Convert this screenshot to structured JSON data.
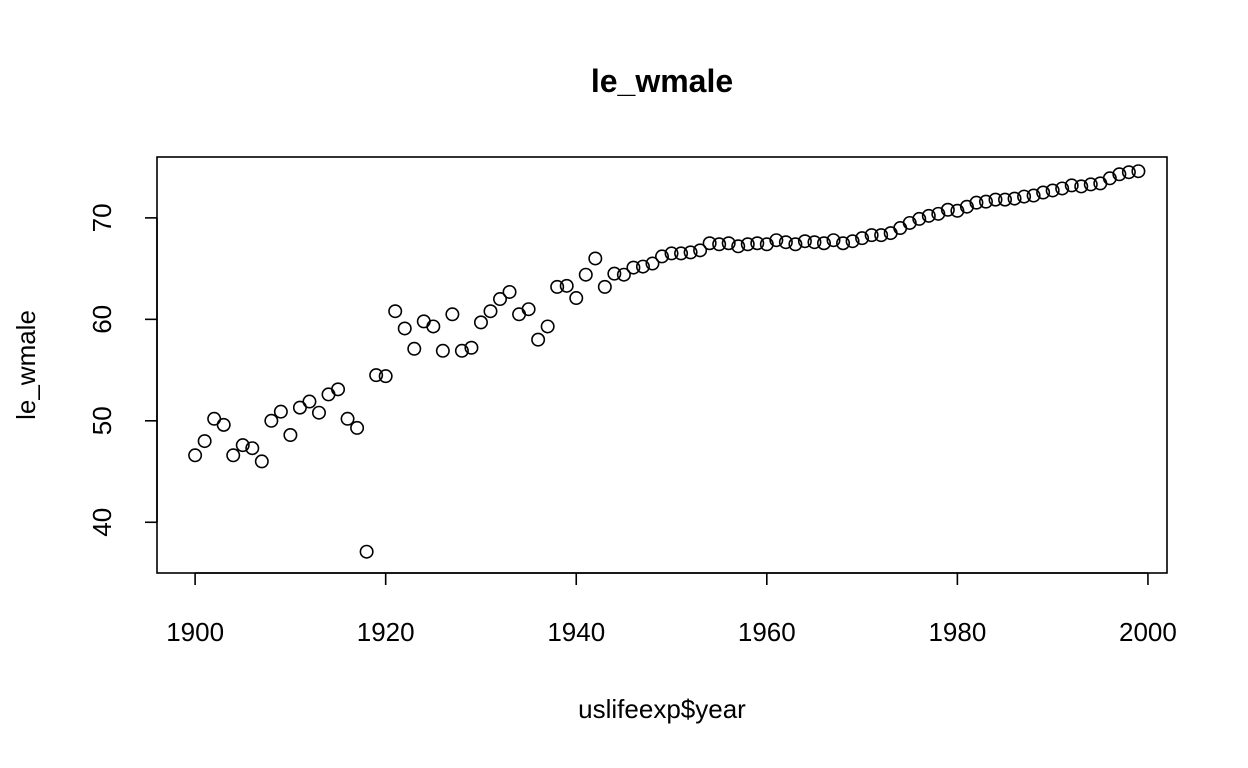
{
  "chart_data": {
    "type": "scatter",
    "title": "le_wmale",
    "xlabel": "uslifeexp$year",
    "ylabel": "le_wmale",
    "xlim": [
      1896,
      2002
    ],
    "ylim": [
      35,
      76
    ],
    "x_ticks": [
      1900,
      1920,
      1940,
      1960,
      1980,
      2000
    ],
    "y_ticks": [
      40,
      50,
      60,
      70
    ],
    "grid": false,
    "points": [
      [
        1900,
        46.6
      ],
      [
        1901,
        48.0
      ],
      [
        1902,
        50.2
      ],
      [
        1903,
        49.6
      ],
      [
        1904,
        46.6
      ],
      [
        1905,
        47.6
      ],
      [
        1906,
        47.3
      ],
      [
        1907,
        46.0
      ],
      [
        1908,
        50.0
      ],
      [
        1909,
        50.9
      ],
      [
        1910,
        48.6
      ],
      [
        1911,
        51.3
      ],
      [
        1912,
        51.9
      ],
      [
        1913,
        50.8
      ],
      [
        1914,
        52.6
      ],
      [
        1915,
        53.1
      ],
      [
        1916,
        50.2
      ],
      [
        1917,
        49.3
      ],
      [
        1918,
        37.1
      ],
      [
        1919,
        54.5
      ],
      [
        1920,
        54.4
      ],
      [
        1921,
        60.8
      ],
      [
        1922,
        59.1
      ],
      [
        1923,
        57.1
      ],
      [
        1924,
        59.8
      ],
      [
        1925,
        59.3
      ],
      [
        1926,
        56.9
      ],
      [
        1927,
        60.5
      ],
      [
        1928,
        56.9
      ],
      [
        1929,
        57.2
      ],
      [
        1930,
        59.7
      ],
      [
        1931,
        60.8
      ],
      [
        1932,
        62.0
      ],
      [
        1933,
        62.7
      ],
      [
        1934,
        60.5
      ],
      [
        1935,
        61.0
      ],
      [
        1936,
        58.0
      ],
      [
        1937,
        59.3
      ],
      [
        1938,
        63.2
      ],
      [
        1939,
        63.3
      ],
      [
        1940,
        62.1
      ],
      [
        1941,
        64.4
      ],
      [
        1942,
        66.0
      ],
      [
        1943,
        63.2
      ],
      [
        1944,
        64.5
      ],
      [
        1945,
        64.4
      ],
      [
        1946,
        65.1
      ],
      [
        1947,
        65.2
      ],
      [
        1948,
        65.5
      ],
      [
        1949,
        66.2
      ],
      [
        1950,
        66.5
      ],
      [
        1951,
        66.5
      ],
      [
        1952,
        66.6
      ],
      [
        1953,
        66.8
      ],
      [
        1954,
        67.5
      ],
      [
        1955,
        67.4
      ],
      [
        1956,
        67.5
      ],
      [
        1957,
        67.2
      ],
      [
        1958,
        67.4
      ],
      [
        1959,
        67.5
      ],
      [
        1960,
        67.4
      ],
      [
        1961,
        67.8
      ],
      [
        1962,
        67.6
      ],
      [
        1963,
        67.4
      ],
      [
        1964,
        67.7
      ],
      [
        1965,
        67.6
      ],
      [
        1966,
        67.5
      ],
      [
        1967,
        67.8
      ],
      [
        1968,
        67.5
      ],
      [
        1969,
        67.7
      ],
      [
        1970,
        68.0
      ],
      [
        1971,
        68.3
      ],
      [
        1972,
        68.3
      ],
      [
        1973,
        68.5
      ],
      [
        1974,
        69.0
      ],
      [
        1975,
        69.5
      ],
      [
        1976,
        69.9
      ],
      [
        1977,
        70.2
      ],
      [
        1978,
        70.4
      ],
      [
        1979,
        70.8
      ],
      [
        1980,
        70.7
      ],
      [
        1981,
        71.1
      ],
      [
        1982,
        71.5
      ],
      [
        1983,
        71.6
      ],
      [
        1984,
        71.8
      ],
      [
        1985,
        71.8
      ],
      [
        1986,
        71.9
      ],
      [
        1987,
        72.1
      ],
      [
        1988,
        72.2
      ],
      [
        1989,
        72.5
      ],
      [
        1990,
        72.7
      ],
      [
        1991,
        72.9
      ],
      [
        1992,
        73.2
      ],
      [
        1993,
        73.1
      ],
      [
        1994,
        73.3
      ],
      [
        1995,
        73.4
      ],
      [
        1996,
        73.9
      ],
      [
        1997,
        74.3
      ],
      [
        1998,
        74.5
      ],
      [
        1999,
        74.6
      ]
    ]
  }
}
